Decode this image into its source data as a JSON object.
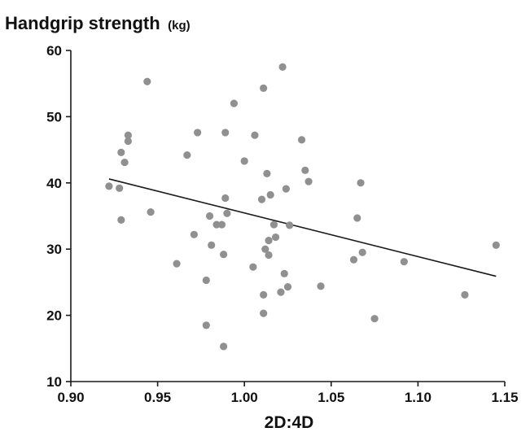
{
  "chart_data": {
    "type": "scatter",
    "title": "Handgrip strength",
    "title_unit": "(kg)",
    "xlabel": "2D:4D",
    "ylabel": "",
    "xlim": [
      0.9,
      1.15
    ],
    "ylim": [
      10,
      60
    ],
    "xticks": [
      "0.90",
      "0.95",
      "1.00",
      "1.05",
      "1.10",
      "1.15"
    ],
    "yticks": [
      "10",
      "20",
      "30",
      "40",
      "50",
      "60"
    ],
    "grid": false,
    "legend": "none",
    "colors": {
      "points": "#909090",
      "trendline": "#1a1a1a",
      "axis": "#1a1a1a"
    },
    "series": [
      {
        "points": [
          [
            0.922,
            39.5
          ],
          [
            0.928,
            39.2
          ],
          [
            0.929,
            44.6
          ],
          [
            0.929,
            34.4
          ],
          [
            0.931,
            43.1
          ],
          [
            0.933,
            46.3
          ],
          [
            0.933,
            47.2
          ],
          [
            0.944,
            55.3
          ],
          [
            0.946,
            35.6
          ],
          [
            0.961,
            27.8
          ],
          [
            0.967,
            44.2
          ],
          [
            0.971,
            32.2
          ],
          [
            0.973,
            47.6
          ],
          [
            0.978,
            18.5
          ],
          [
            0.978,
            25.3
          ],
          [
            0.98,
            35.0
          ],
          [
            0.981,
            30.6
          ],
          [
            0.984,
            33.7
          ],
          [
            0.987,
            33.7
          ],
          [
            0.988,
            29.2
          ],
          [
            0.988,
            15.3
          ],
          [
            0.989,
            37.7
          ],
          [
            0.989,
            47.6
          ],
          [
            0.99,
            35.4
          ],
          [
            0.994,
            52.0
          ],
          [
            1.0,
            43.3
          ],
          [
            1.005,
            27.3
          ],
          [
            1.006,
            47.2
          ],
          [
            1.01,
            37.5
          ],
          [
            1.011,
            54.3
          ],
          [
            1.011,
            20.3
          ],
          [
            1.011,
            23.1
          ],
          [
            1.012,
            30.0
          ],
          [
            1.013,
            41.4
          ],
          [
            1.014,
            31.3
          ],
          [
            1.014,
            29.1
          ],
          [
            1.015,
            38.2
          ],
          [
            1.017,
            33.7
          ],
          [
            1.018,
            31.8
          ],
          [
            1.021,
            23.5
          ],
          [
            1.022,
            57.5
          ],
          [
            1.023,
            26.3
          ],
          [
            1.024,
            39.1
          ],
          [
            1.025,
            24.3
          ],
          [
            1.026,
            33.6
          ],
          [
            1.033,
            46.5
          ],
          [
            1.035,
            41.9
          ],
          [
            1.037,
            40.2
          ],
          [
            1.044,
            24.4
          ],
          [
            1.063,
            28.4
          ],
          [
            1.065,
            34.7
          ],
          [
            1.067,
            40.0
          ],
          [
            1.068,
            29.5
          ],
          [
            1.075,
            19.5
          ],
          [
            1.092,
            28.1
          ],
          [
            1.127,
            23.1
          ],
          [
            1.145,
            30.6
          ]
        ]
      }
    ],
    "trendline": {
      "x": [
        0.922,
        1.145
      ],
      "y": [
        40.6,
        25.9
      ]
    }
  }
}
